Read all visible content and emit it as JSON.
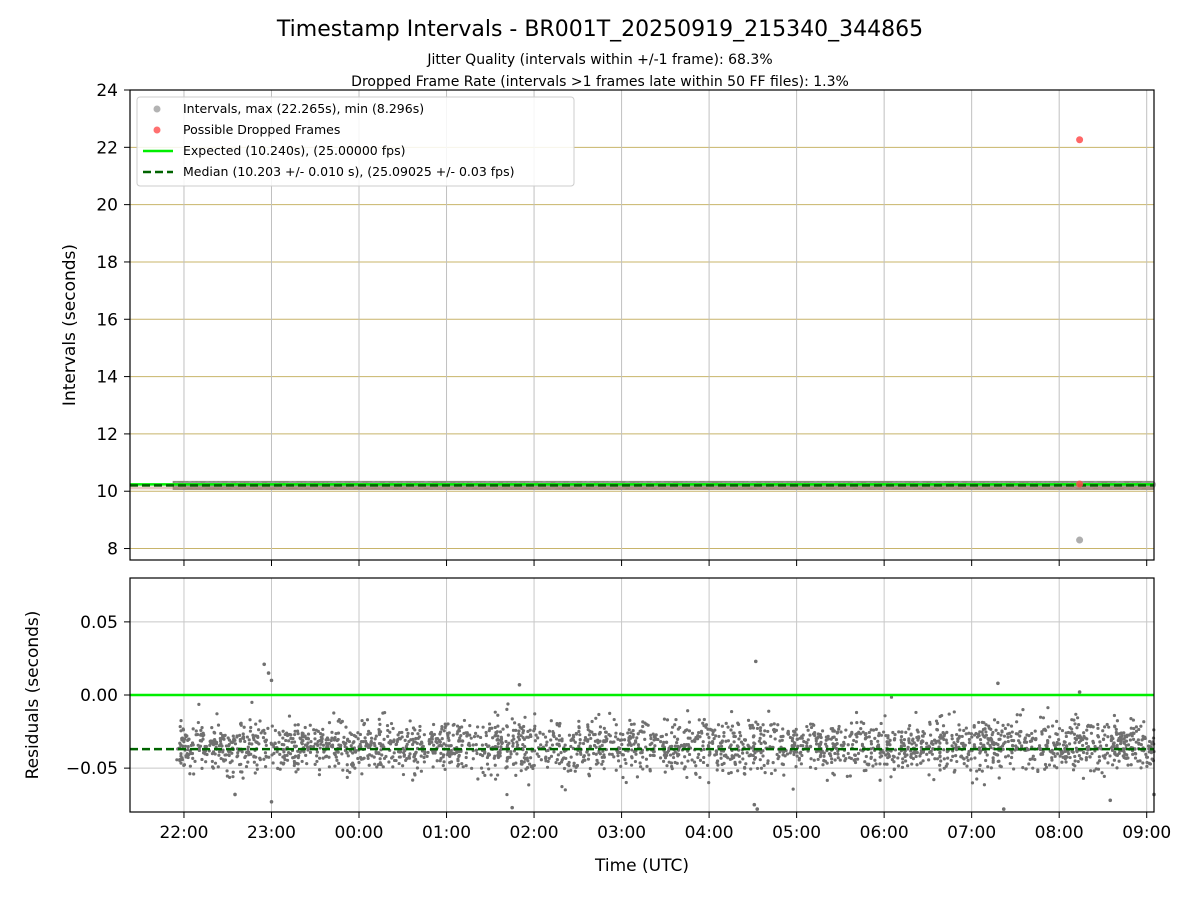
{
  "chart_data": [
    {
      "panel": "top",
      "type": "scatter",
      "title": "Timestamp Intervals - BR001T_20250919_215340_344865",
      "subtitle_1": "Jitter Quality (intervals within +/-1 frame): 68.3%",
      "subtitle_2": "Dropped Frame Rate (intervals >1 frames late within 50 FF files): 1.3%",
      "ylabel": "Intervals (seconds)",
      "ylim": [
        7.6,
        24
      ],
      "yticks": [
        "8",
        "10",
        "12",
        "14",
        "16",
        "18",
        "20",
        "22",
        "24"
      ],
      "xlim": [
        "21:23",
        "09:05"
      ],
      "grid": true,
      "legend_position": "upper-left",
      "legend": [
        "Intervals, max (22.265s), min (8.296s)",
        "Possible Dropped Frames",
        "Expected (10.240s), (25.00000 fps)",
        "Median (10.203 +/- 0.010 s), (25.09025 +/- 0.03 fps)"
      ],
      "series": [
        {
          "name": "Intervals, max (22.265s), min (8.296s)",
          "color": "#a0a0a0",
          "x_start": "21:55",
          "x_end": "09:05",
          "y_typical": 10.203,
          "outliers": [
            {
              "x": "08:14",
              "y": 8.296
            }
          ]
        },
        {
          "name": "Possible Dropped Frames",
          "color": "#ff4c4c",
          "points": [
            {
              "x": "08:14",
              "y": 22.265
            },
            {
              "x": "08:14",
              "y": 10.25
            }
          ]
        },
        {
          "name": "Expected (10.240s), (25.00000 fps)",
          "type": "hline",
          "y": 10.24,
          "color": "#00ee00",
          "style": "solid"
        },
        {
          "name": "Median (10.203 +/- 0.010 s), (25.09025 +/- 0.03 fps)",
          "type": "hline",
          "y": 10.203,
          "color": "#006400",
          "style": "dashed"
        }
      ]
    },
    {
      "panel": "bottom",
      "type": "scatter",
      "ylabel": "Residuals (seconds)",
      "ylim": [
        -0.08,
        0.08
      ],
      "yticks": [
        {
          "value": 0.05,
          "label": "0.05"
        },
        {
          "value": 0.0,
          "label": "0.00"
        },
        {
          "value": -0.05,
          "label": "−0.05"
        }
      ],
      "xlabel": "Time (UTC)",
      "xticks": [
        "22:00",
        "23:00",
        "00:00",
        "01:00",
        "02:00",
        "03:00",
        "04:00",
        "05:00",
        "06:00",
        "07:00",
        "08:00",
        "09:00"
      ],
      "xlim": [
        "21:23",
        "09:05"
      ],
      "grid": true,
      "series": [
        {
          "name": "Residuals",
          "color": "#707070",
          "x_start": "21:55",
          "x_end": "09:05",
          "y_center": -0.035,
          "y_band": [
            -0.05,
            -0.018
          ],
          "outliers": [
            {
              "x": "22:55",
              "y": 0.021
            },
            {
              "x": "23:00",
              "y": 0.01
            },
            {
              "x": "22:58",
              "y": 0.015
            },
            {
              "x": "04:32",
              "y": 0.023
            },
            {
              "x": "07:18",
              "y": 0.008
            },
            {
              "x": "01:50",
              "y": 0.007
            },
            {
              "x": "08:14",
              "y": 0.002
            },
            {
              "x": "04:33",
              "y": -0.078
            },
            {
              "x": "04:31",
              "y": -0.075
            },
            {
              "x": "01:45",
              "y": -0.077
            },
            {
              "x": "07:22",
              "y": -0.078
            },
            {
              "x": "09:05",
              "y": -0.068
            },
            {
              "x": "22:35",
              "y": -0.068
            },
            {
              "x": "23:00",
              "y": -0.073
            },
            {
              "x": "08:35",
              "y": -0.072
            }
          ]
        },
        {
          "name": "Expected",
          "type": "hline",
          "y": 0.0,
          "color": "#00ee00",
          "style": "solid"
        },
        {
          "name": "Median",
          "type": "hline",
          "y": -0.037,
          "color": "#006400",
          "style": "dashed"
        }
      ]
    }
  ]
}
